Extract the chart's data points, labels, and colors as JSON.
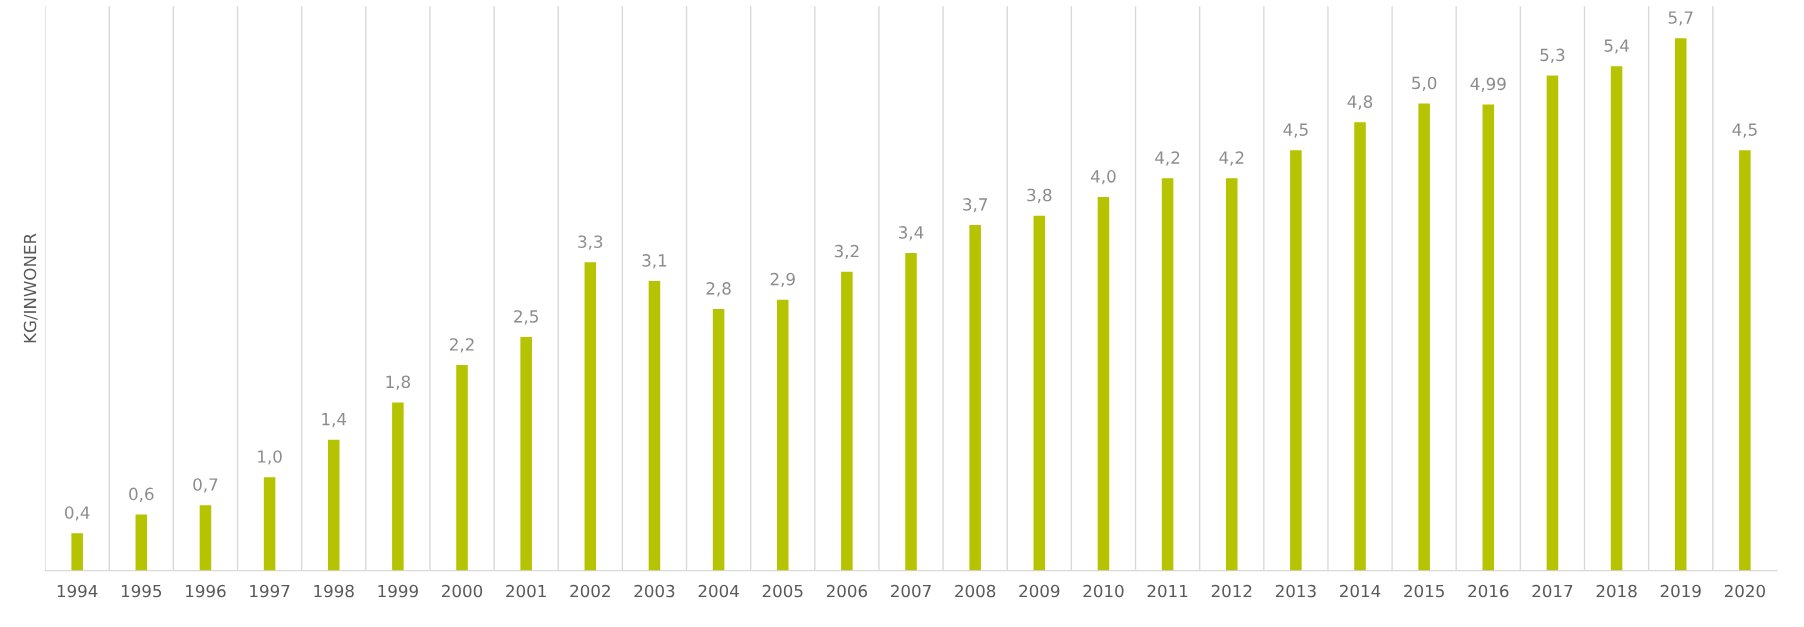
{
  "chart_data": {
    "type": "bar",
    "ylabel": "KG/INWONER",
    "categories": [
      "1994",
      "1995",
      "1996",
      "1997",
      "1998",
      "1999",
      "2000",
      "2001",
      "2002",
      "2003",
      "2004",
      "2005",
      "2006",
      "2007",
      "2008",
      "2009",
      "2010",
      "2011",
      "2012",
      "2013",
      "2014",
      "2015",
      "2016",
      "2017",
      "2018",
      "2019",
      "2020"
    ],
    "values": [
      0.4,
      0.6,
      0.7,
      1.0,
      1.4,
      1.8,
      2.2,
      2.5,
      3.3,
      3.1,
      2.8,
      2.9,
      3.2,
      3.4,
      3.7,
      3.8,
      4.0,
      4.2,
      4.2,
      4.5,
      4.8,
      5.0,
      4.99,
      5.3,
      5.4,
      5.7,
      4.5
    ],
    "value_labels": [
      "0,4",
      "0,6",
      "0,7",
      "1,0",
      "1,4",
      "1,8",
      "2,2",
      "2,5",
      "3,3",
      "3,1",
      "2,8",
      "2,9",
      "3,2",
      "3,4",
      "3,7",
      "3,8",
      "4,0",
      "4,2",
      "4,2",
      "4,5",
      "4,8",
      "5,0",
      "4,99",
      "5,3",
      "5,4",
      "5,7",
      "4,5"
    ],
    "color": "#b5c300",
    "grid": "x"
  }
}
